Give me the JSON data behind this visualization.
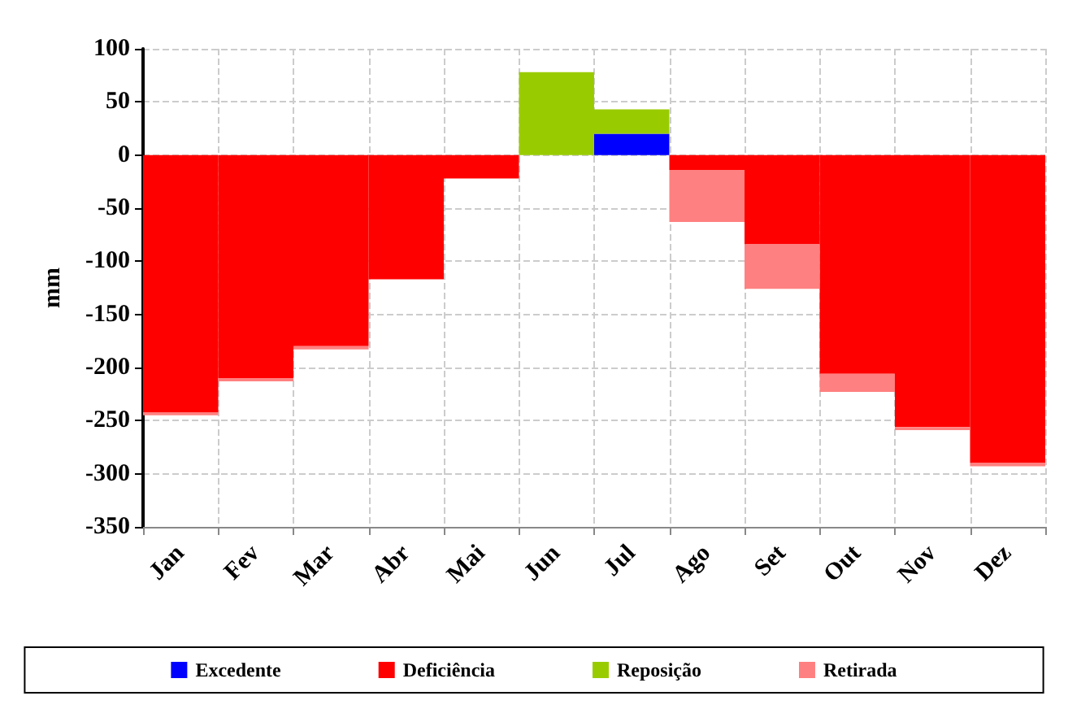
{
  "chart_data": {
    "type": "bar",
    "stacked": true,
    "ylabel": "mm",
    "categories": [
      "Jan",
      "Fev",
      "Mar",
      "Abr",
      "Mai",
      "Jun",
      "Jul",
      "Ago",
      "Set",
      "Out",
      "Nov",
      "Dez"
    ],
    "series": [
      {
        "name": "Excedente",
        "color": "#0000ff",
        "values": [
          0,
          0,
          0,
          0,
          0,
          0,
          20,
          0,
          0,
          0,
          0,
          0
        ]
      },
      {
        "name": "Deficiência",
        "color": "#ff0000",
        "values": [
          -242,
          -210,
          -180,
          -117,
          -22,
          0,
          0,
          -14,
          -84,
          -206,
          -256,
          -290
        ]
      },
      {
        "name": "Reposição",
        "color": "#99cc00",
        "values": [
          0,
          0,
          0,
          0,
          0,
          78,
          23,
          0,
          0,
          0,
          0,
          0
        ]
      },
      {
        "name": "Retirada",
        "color": "#ff8080",
        "values": [
          -3,
          -3,
          -3,
          0,
          0,
          0,
          0,
          -49,
          -42,
          -17,
          -3,
          -3
        ]
      }
    ],
    "ylim": [
      -350,
      100
    ],
    "yticks": [
      -350,
      -300,
      -250,
      -200,
      -150,
      -100,
      -50,
      0,
      50,
      100
    ],
    "grid": true,
    "legend": "bottom"
  }
}
